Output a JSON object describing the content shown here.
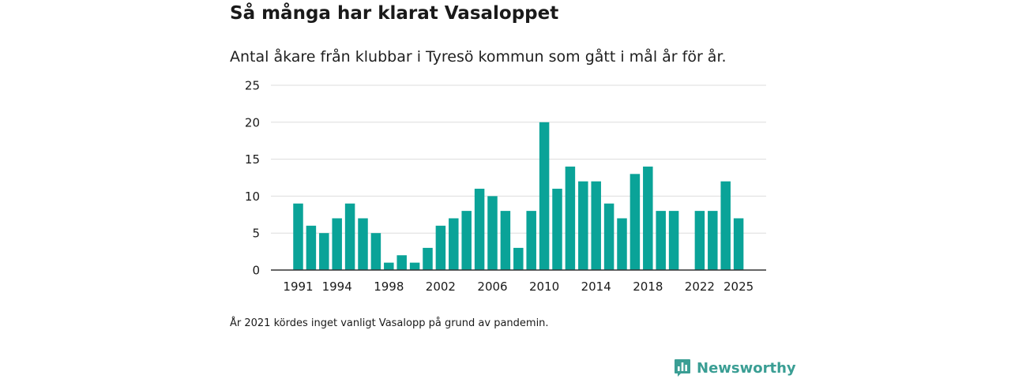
{
  "header": {
    "title": "Så många har klarat Vasaloppet",
    "subtitle": "Antal åkare från klubbar i Tyresö kommun som gått i mål år för år."
  },
  "footer": {
    "note": "År 2021 kördes inget vanligt Vasalopp på grund av pandemin.",
    "brand": "Newsworthy"
  },
  "colors": {
    "bar": "#0aa398",
    "brand": "#3a9e94",
    "grid": "#dddddd",
    "axis": "#333333",
    "text": "#1a1a1a"
  },
  "chart_data": {
    "type": "bar",
    "title": "Så många har klarat Vasaloppet",
    "subtitle": "Antal åkare från klubbar i Tyresö kommun som gått i mål år för år.",
    "xlabel": "",
    "ylabel": "",
    "categories": [
      "1991",
      "1992",
      "1993",
      "1994",
      "1995",
      "1996",
      "1997",
      "1998",
      "1999",
      "2000",
      "2001",
      "2002",
      "2003",
      "2004",
      "2005",
      "2006",
      "2007",
      "2008",
      "2009",
      "2010",
      "2011",
      "2012",
      "2013",
      "2014",
      "2015",
      "2016",
      "2017",
      "2018",
      "2019",
      "2020",
      "2021",
      "2022",
      "2023",
      "2024",
      "2025"
    ],
    "values": [
      9,
      6,
      5,
      7,
      9,
      7,
      5,
      1,
      2,
      1,
      3,
      6,
      7,
      8,
      11,
      10,
      8,
      3,
      8,
      20,
      11,
      14,
      12,
      12,
      9,
      7,
      13,
      14,
      8,
      8,
      null,
      8,
      8,
      12,
      7
    ],
    "xticks": [
      "1991",
      "1994",
      "1998",
      "2002",
      "2006",
      "2010",
      "2014",
      "2018",
      "2022",
      "2025"
    ],
    "yticks": [
      0,
      5,
      10,
      15,
      20,
      25
    ],
    "ylim": [
      0,
      25
    ],
    "grid": true,
    "legend": "none"
  }
}
